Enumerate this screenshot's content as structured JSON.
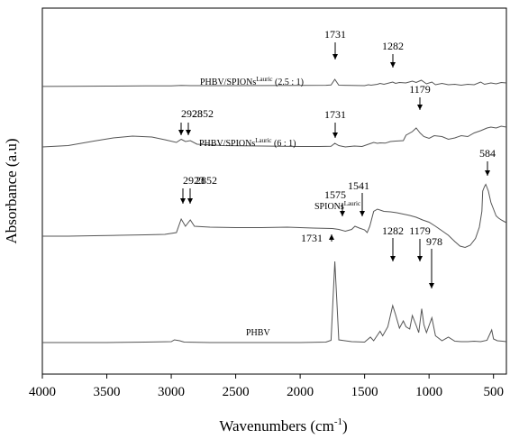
{
  "chart_data": {
    "type": "line",
    "title": "",
    "xlabel": "Wavenumbers (cm",
    "xlabel_sup": "-1",
    "xlabel_end": ")",
    "ylabel": "Absorbance (a.u)",
    "xlim": [
      4000,
      400
    ],
    "x_axis_reversed": true,
    "xticks": [
      4000,
      3500,
      3000,
      2500,
      2000,
      1500,
      1000,
      500
    ],
    "y_tick_labels": false,
    "grid": false,
    "line_color": "#555555",
    "series": [
      {
        "name": "PHBV/SPIONs",
        "name_sup": "Lauric",
        "name_suffix": "  (2.5 : 1)",
        "peak_labels": [
          "1731",
          "1282"
        ],
        "points": [
          [
            4000,
            0.2
          ],
          [
            3800,
            0.5
          ],
          [
            3500,
            1.0
          ],
          [
            3200,
            1.3
          ],
          [
            3000,
            1.5
          ],
          [
            2923,
            2.5
          ],
          [
            2852,
            2.0
          ],
          [
            2500,
            2.0
          ],
          [
            2000,
            2.5
          ],
          [
            1800,
            2.8
          ],
          [
            1760,
            3.5
          ],
          [
            1731,
            16.0
          ],
          [
            1700,
            3.0
          ],
          [
            1600,
            2.5
          ],
          [
            1500,
            2.0
          ],
          [
            1470,
            4.0
          ],
          [
            1450,
            3.0
          ],
          [
            1400,
            5.0
          ],
          [
            1380,
            7.0
          ],
          [
            1350,
            5.0
          ],
          [
            1282,
            10.0
          ],
          [
            1260,
            7.0
          ],
          [
            1230,
            9.0
          ],
          [
            1180,
            8.0
          ],
          [
            1130,
            12.0
          ],
          [
            1100,
            9.0
          ],
          [
            1060,
            14.0
          ],
          [
            1020,
            6.0
          ],
          [
            978,
            10.0
          ],
          [
            950,
            4.0
          ],
          [
            900,
            7.0
          ],
          [
            850,
            4.0
          ],
          [
            800,
            5.0
          ],
          [
            750,
            3.0
          ],
          [
            700,
            5.0
          ],
          [
            650,
            4.0
          ],
          [
            600,
            10.0
          ],
          [
            570,
            5.0
          ],
          [
            520,
            8.0
          ],
          [
            480,
            6.0
          ],
          [
            440,
            9.0
          ],
          [
            400,
            8.0
          ]
        ]
      },
      {
        "name": "PHBV/SPIONs",
        "name_sup": "Lauric",
        "name_suffix": "  (6 : 1)",
        "peak_labels": [
          "2923",
          "2852",
          "1731",
          "1179"
        ],
        "points": [
          [
            4000,
            2.0
          ],
          [
            3800,
            5.0
          ],
          [
            3600,
            15.0
          ],
          [
            3450,
            22.0
          ],
          [
            3300,
            26.0
          ],
          [
            3150,
            24.0
          ],
          [
            3050,
            18.0
          ],
          [
            2960,
            12.0
          ],
          [
            2923,
            19.0
          ],
          [
            2890,
            14.0
          ],
          [
            2852,
            16.0
          ],
          [
            2800,
            8.0
          ],
          [
            2600,
            5.0
          ],
          [
            2300,
            4.0
          ],
          [
            2000,
            3.0
          ],
          [
            1850,
            3.0
          ],
          [
            1760,
            3.5
          ],
          [
            1731,
            10.0
          ],
          [
            1700,
            5.0
          ],
          [
            1650,
            2.0
          ],
          [
            1580,
            4.0
          ],
          [
            1520,
            3.0
          ],
          [
            1470,
            8.0
          ],
          [
            1430,
            12.0
          ],
          [
            1400,
            10.0
          ],
          [
            1380,
            11.0
          ],
          [
            1340,
            10.5
          ],
          [
            1300,
            14.0
          ],
          [
            1260,
            15.0
          ],
          [
            1200,
            16.0
          ],
          [
            1179,
            28.0
          ],
          [
            1130,
            36.0
          ],
          [
            1100,
            44.0
          ],
          [
            1070,
            33.0
          ],
          [
            1040,
            25.0
          ],
          [
            1000,
            21.0
          ],
          [
            960,
            27.0
          ],
          [
            900,
            25.0
          ],
          [
            850,
            19.0
          ],
          [
            800,
            22.0
          ],
          [
            750,
            27.0
          ],
          [
            700,
            25.0
          ],
          [
            650,
            33.0
          ],
          [
            600,
            38.0
          ],
          [
            550,
            44.0
          ],
          [
            520,
            46.0
          ],
          [
            480,
            44.0
          ],
          [
            440,
            48.0
          ],
          [
            400,
            46.0
          ]
        ]
      },
      {
        "name": "SPIONs",
        "name_sup": "Lauric",
        "name_suffix": "",
        "peak_labels": [
          "2923",
          "2852",
          "1575",
          "1541",
          "584"
        ],
        "points": [
          [
            4000,
            0.0
          ],
          [
            3800,
            0.0
          ],
          [
            3600,
            1.0
          ],
          [
            3400,
            2.0
          ],
          [
            3200,
            3.0
          ],
          [
            3050,
            4.0
          ],
          [
            2960,
            8.0
          ],
          [
            2923,
            38.0
          ],
          [
            2890,
            22.0
          ],
          [
            2852,
            36.0
          ],
          [
            2820,
            22.0
          ],
          [
            2700,
            20.0
          ],
          [
            2500,
            19.0
          ],
          [
            2300,
            19.0
          ],
          [
            2100,
            20.0
          ],
          [
            1900,
            18.0
          ],
          [
            1750,
            17.0
          ],
          [
            1700,
            15.0
          ],
          [
            1650,
            11.0
          ],
          [
            1600,
            15.0
          ],
          [
            1575,
            22.0
          ],
          [
            1541,
            18.0
          ],
          [
            1500,
            14.0
          ],
          [
            1480,
            8.0
          ],
          [
            1460,
            22.0
          ],
          [
            1430,
            55.0
          ],
          [
            1400,
            60.0
          ],
          [
            1350,
            55.0
          ],
          [
            1300,
            54.0
          ],
          [
            1250,
            52.0
          ],
          [
            1200,
            49.0
          ],
          [
            1150,
            46.0
          ],
          [
            1100,
            42.0
          ],
          [
            1050,
            36.0
          ],
          [
            1000,
            31.0
          ],
          [
            950,
            22.0
          ],
          [
            900,
            12.0
          ],
          [
            850,
            2.0
          ],
          [
            800,
            -12.0
          ],
          [
            760,
            -22.0
          ],
          [
            720,
            -25.0
          ],
          [
            680,
            -20.0
          ],
          [
            640,
            -5.0
          ],
          [
            610,
            20.0
          ],
          [
            590,
            55.0
          ],
          [
            584,
            100.0
          ],
          [
            570,
            110.0
          ],
          [
            560,
            115.0
          ],
          [
            540,
            100.0
          ],
          [
            520,
            75.0
          ],
          [
            500,
            60.0
          ],
          [
            480,
            45.0
          ],
          [
            460,
            40.0
          ],
          [
            440,
            36.0
          ],
          [
            420,
            33.0
          ],
          [
            400,
            30.0
          ]
        ]
      },
      {
        "name": "PHBV",
        "name_sup": "",
        "name_suffix": "",
        "peak_labels": [
          "1731",
          "1282",
          "1179",
          "978"
        ],
        "points": [
          [
            4000,
            0.0
          ],
          [
            3500,
            0.0
          ],
          [
            3200,
            1.0
          ],
          [
            3000,
            2.0
          ],
          [
            2975,
            6.0
          ],
          [
            2935,
            4.0
          ],
          [
            2900,
            1.0
          ],
          [
            2700,
            0.0
          ],
          [
            2000,
            0.0
          ],
          [
            1800,
            1.0
          ],
          [
            1760,
            5.0
          ],
          [
            1731,
            180.0
          ],
          [
            1700,
            6.0
          ],
          [
            1600,
            2.0
          ],
          [
            1500,
            1.0
          ],
          [
            1455,
            12.0
          ],
          [
            1430,
            4.0
          ],
          [
            1380,
            25.0
          ],
          [
            1360,
            15.0
          ],
          [
            1320,
            35.0
          ],
          [
            1282,
            82.0
          ],
          [
            1260,
            62.0
          ],
          [
            1230,
            32.0
          ],
          [
            1200,
            48.0
          ],
          [
            1179,
            35.0
          ],
          [
            1150,
            30.0
          ],
          [
            1130,
            60.0
          ],
          [
            1100,
            38.0
          ],
          [
            1080,
            22.0
          ],
          [
            1057,
            75.0
          ],
          [
            1040,
            40.0
          ],
          [
            1020,
            22.0
          ],
          [
            978,
            55.0
          ],
          [
            950,
            15.0
          ],
          [
            900,
            4.0
          ],
          [
            850,
            12.0
          ],
          [
            800,
            3.0
          ],
          [
            750,
            2.0
          ],
          [
            700,
            2.0
          ],
          [
            650,
            3.0
          ],
          [
            600,
            2.0
          ],
          [
            550,
            5.0
          ],
          [
            514,
            28.0
          ],
          [
            500,
            8.0
          ],
          [
            470,
            4.0
          ],
          [
            430,
            3.0
          ],
          [
            400,
            2.0
          ]
        ]
      }
    ]
  }
}
